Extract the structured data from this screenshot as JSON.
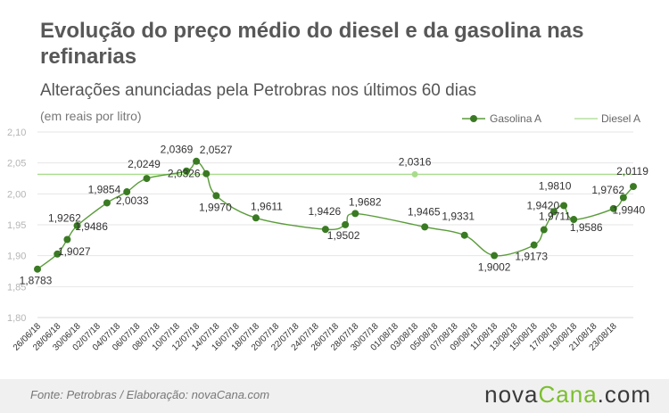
{
  "header": {
    "title": "Evolução do preço médio do diesel e da gasolina nas refinarias",
    "subtitle": "Alterações anunciadas pela Petrobras nos últimos 60 dias",
    "unit_note": "(em reais por litro)"
  },
  "footer": {
    "source": "Fonte:  Petrobras  / Elaboração:  novaCana.com",
    "brand_main": "nova",
    "brand_accent": "Cana",
    "brand_suffix": ".com"
  },
  "chart_data": {
    "type": "line",
    "ylim": [
      1.8,
      2.1
    ],
    "yticks": [
      "1,80",
      "1,85",
      "1,90",
      "1,95",
      "2,00",
      "2,05",
      "2,10"
    ],
    "xlim": [
      "2018-06-26",
      "2018-08-25"
    ],
    "xticks": [
      "26/06/18",
      "28/06/18",
      "30/06/18",
      "02/07/18",
      "04/07/18",
      "06/07/18",
      "08/07/18",
      "10/07/18",
      "12/07/18",
      "14/07/18",
      "16/07/18",
      "18/07/18",
      "20/07/18",
      "22/07/18",
      "24/07/18",
      "26/07/18",
      "28/07/18",
      "30/07/18",
      "01/08/18",
      "03/08/18",
      "05/08/18",
      "07/08/18",
      "09/08/18",
      "11/08/18",
      "13/08/18",
      "15/08/18",
      "17/08/18",
      "19/08/18",
      "21/08/18",
      "23/08/18"
    ],
    "legend_position": "top-right",
    "series": [
      {
        "name": "Gasolina A",
        "color": "#3a7a23",
        "points": [
          {
            "x": "2018-06-26",
            "y": 1.8783,
            "label": "1,8783"
          },
          {
            "x": "2018-06-28",
            "y": 1.9027,
            "label": "1,9027"
          },
          {
            "x": "2018-06-29",
            "y": 1.9262,
            "label": "1,9262"
          },
          {
            "x": "2018-06-30",
            "y": 1.9486,
            "label": "1,9486"
          },
          {
            "x": "2018-07-03",
            "y": 1.9854,
            "label": "1,9854"
          },
          {
            "x": "2018-07-05",
            "y": 2.0033,
            "label": "2,0033"
          },
          {
            "x": "2018-07-07",
            "y": 2.0249,
            "label": "2,0249"
          },
          {
            "x": "2018-07-11",
            "y": 2.0369,
            "label": "2,0369"
          },
          {
            "x": "2018-07-12",
            "y": 2.0527,
            "label": "2,0527"
          },
          {
            "x": "2018-07-13",
            "y": 2.0326,
            "label": "2,0326"
          },
          {
            "x": "2018-07-14",
            "y": 1.997,
            "label": "1,9970"
          },
          {
            "x": "2018-07-18",
            "y": 1.9611,
            "label": "1,9611"
          },
          {
            "x": "2018-07-25",
            "y": 1.9426,
            "label": "1,9426"
          },
          {
            "x": "2018-07-27",
            "y": 1.9502,
            "label": "1,9502"
          },
          {
            "x": "2018-07-28",
            "y": 1.9682,
            "label": "1,9682"
          },
          {
            "x": "2018-08-04",
            "y": 1.9465,
            "label": "1,9465"
          },
          {
            "x": "2018-08-08",
            "y": 1.9331,
            "label": "1,9331"
          },
          {
            "x": "2018-08-11",
            "y": 1.9002,
            "label": "1,9002"
          },
          {
            "x": "2018-08-15",
            "y": 1.9173,
            "label": "1,9173"
          },
          {
            "x": "2018-08-16",
            "y": 1.942,
            "label": "1,9420"
          },
          {
            "x": "2018-08-17",
            "y": 1.9711,
            "label": "1,9711"
          },
          {
            "x": "2018-08-18",
            "y": 1.981,
            "label": "1,9810"
          },
          {
            "x": "2018-08-19",
            "y": 1.9586,
            "label": "1,9586"
          },
          {
            "x": "2018-08-23",
            "y": 1.9762,
            "label": "1,9762"
          },
          {
            "x": "2018-08-24",
            "y": 1.994,
            "label": "1,9940"
          },
          {
            "x": "2018-08-25",
            "y": 2.0119,
            "label": "2,0119"
          }
        ]
      },
      {
        "name": "Diesel A",
        "color": "#a8dc8c",
        "points": [
          {
            "x": "2018-06-26",
            "y": 2.0316
          },
          {
            "x": "2018-08-25",
            "y": 2.0316
          }
        ],
        "labels": [
          {
            "x": "2018-08-03",
            "y": 2.0316,
            "label": "2,0316"
          }
        ]
      }
    ]
  }
}
